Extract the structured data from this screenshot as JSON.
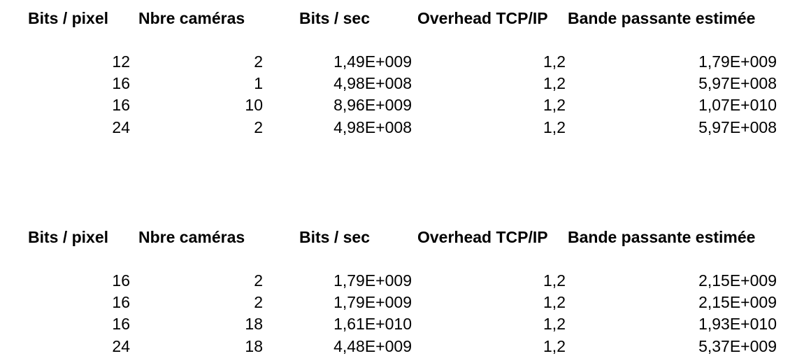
{
  "tables": [
    {
      "headers": [
        "Bits / pixel",
        "Nbre caméras",
        "Bits / sec",
        "Overhead TCP/IP",
        "Bande passante estimée"
      ],
      "rows": [
        [
          "12",
          "2",
          "1,49E+009",
          "1,2",
          "1,79E+009"
        ],
        [
          "16",
          "1",
          "4,98E+008",
          "1,2",
          "5,97E+008"
        ],
        [
          "16",
          "10",
          "8,96E+009",
          "1,2",
          "1,07E+010"
        ],
        [
          "24",
          "2",
          "4,98E+008",
          "1,2",
          "5,97E+008"
        ]
      ]
    },
    {
      "headers": [
        "Bits / pixel",
        "Nbre caméras",
        "Bits / sec",
        "Overhead TCP/IP",
        "Bande passante estimée"
      ],
      "rows": [
        [
          "16",
          "2",
          "1,79E+009",
          "1,2",
          "2,15E+009"
        ],
        [
          "16",
          "2",
          "1,79E+009",
          "1,2",
          "2,15E+009"
        ],
        [
          "16",
          "18",
          "1,61E+010",
          "1,2",
          "1,93E+010"
        ],
        [
          "24",
          "18",
          "4,48E+009",
          "1,2",
          "5,37E+009"
        ]
      ]
    }
  ]
}
